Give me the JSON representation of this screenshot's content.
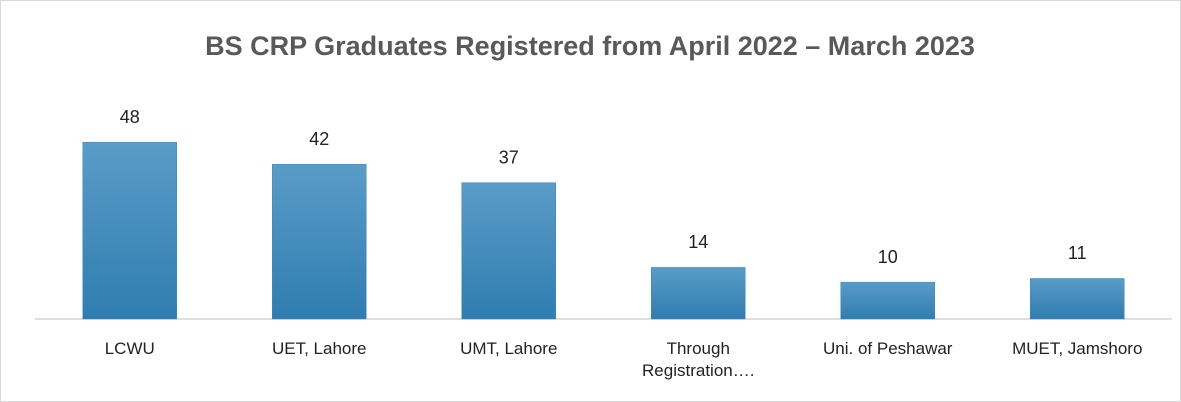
{
  "chart_data": {
    "type": "bar",
    "title": "BS CRP Graduates Registered from April 2022 – March 2023",
    "categories": [
      "LCWU",
      "UET, Lahore",
      "UMT, Lahore",
      "Through Registration….",
      "Uni. of Peshawar",
      "MUET, Jamshoro"
    ],
    "values": [
      48,
      42,
      37,
      14,
      10,
      11
    ],
    "color": "#3a8bc0",
    "ylim": [
      0,
      60
    ]
  }
}
